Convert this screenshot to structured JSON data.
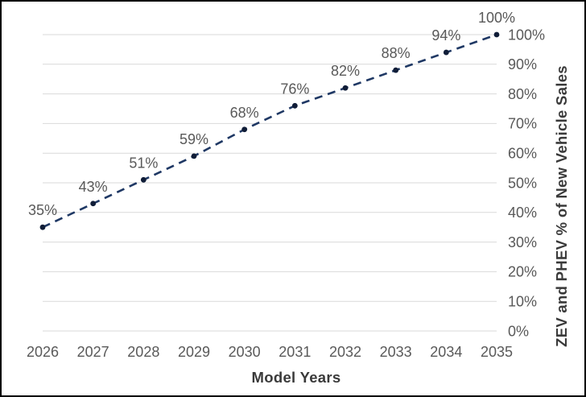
{
  "chart_data": {
    "type": "line",
    "title": "",
    "xlabel": "Model Years",
    "ylabel": "ZEV and PHEV % of New Vehicle Sales",
    "x": [
      "2026",
      "2027",
      "2028",
      "2029",
      "2030",
      "2031",
      "2032",
      "2033",
      "2034",
      "2035"
    ],
    "series": [
      {
        "name": "ZEV and PHEV % of New Vehicle Sales",
        "values": [
          35,
          43,
          51,
          59,
          68,
          76,
          82,
          88,
          94,
          100
        ],
        "data_labels": [
          "35%",
          "43%",
          "51%",
          "59%",
          "68%",
          "76%",
          "82%",
          "88%",
          "94%",
          "100%"
        ]
      }
    ],
    "ylim": [
      0,
      100
    ],
    "yticks": [
      0,
      10,
      20,
      30,
      40,
      50,
      60,
      70,
      80,
      90,
      100
    ],
    "ytick_labels": [
      "0%",
      "10%",
      "20%",
      "30%",
      "40%",
      "50%",
      "60%",
      "70%",
      "80%",
      "90%",
      "100%"
    ],
    "y_axis_side": "right",
    "grid": "horizontal",
    "line_style": "dashed",
    "marker": "circle",
    "legend": "none",
    "colors": {
      "line": "#1F3864",
      "marker": "#101D38",
      "grid": "#D9D9D9",
      "tick_text": "#595959",
      "axis_title_text": "#3A3A3A",
      "background": "#FFFFFF",
      "border": "#000000"
    }
  }
}
